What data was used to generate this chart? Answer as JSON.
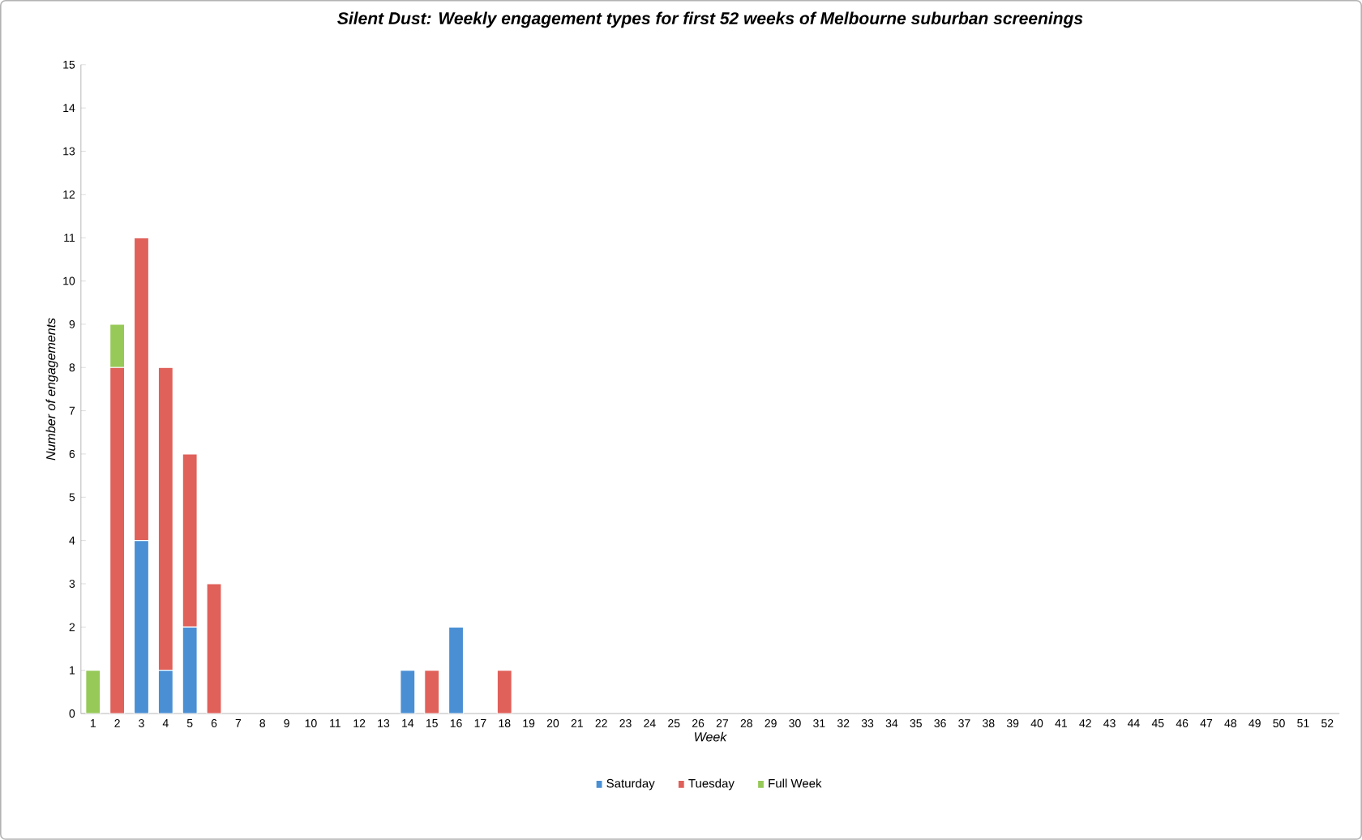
{
  "chart_data": {
    "type": "bar",
    "stacked": true,
    "title": "Silent Dust: Weekly engagement types for first 52 weeks of Melbourne suburban screenings",
    "xlabel": "Week",
    "ylabel": "Number of engagements",
    "categories": [
      "1",
      "2",
      "3",
      "4",
      "5",
      "6",
      "7",
      "8",
      "9",
      "10",
      "11",
      "12",
      "13",
      "14",
      "15",
      "16",
      "17",
      "18",
      "19",
      "20",
      "21",
      "22",
      "23",
      "24",
      "25",
      "26",
      "27",
      "28",
      "29",
      "30",
      "31",
      "32",
      "33",
      "34",
      "35",
      "36",
      "37",
      "38",
      "39",
      "40",
      "41",
      "42",
      "43",
      "44",
      "45",
      "46",
      "47",
      "48",
      "49",
      "50",
      "51",
      "52"
    ],
    "series": [
      {
        "name": "Saturday",
        "color": "#4a8fd4",
        "values": [
          0,
          0,
          4,
          1,
          2,
          0,
          0,
          0,
          0,
          0,
          0,
          0,
          0,
          1,
          0,
          2,
          0,
          0,
          0,
          0,
          0,
          0,
          0,
          0,
          0,
          0,
          0,
          0,
          0,
          0,
          0,
          0,
          0,
          0,
          0,
          0,
          0,
          0,
          0,
          0,
          0,
          0,
          0,
          0,
          0,
          0,
          0,
          0,
          0,
          0,
          0,
          0
        ]
      },
      {
        "name": "Tuesday",
        "color": "#e0605a",
        "values": [
          0,
          8,
          7,
          7,
          4,
          3,
          0,
          0,
          0,
          0,
          0,
          0,
          0,
          0,
          1,
          0,
          0,
          1,
          0,
          0,
          0,
          0,
          0,
          0,
          0,
          0,
          0,
          0,
          0,
          0,
          0,
          0,
          0,
          0,
          0,
          0,
          0,
          0,
          0,
          0,
          0,
          0,
          0,
          0,
          0,
          0,
          0,
          0,
          0,
          0,
          0,
          0
        ]
      },
      {
        "name": "Full Week",
        "color": "#96c957",
        "values": [
          1,
          1,
          0,
          0,
          0,
          0,
          0,
          0,
          0,
          0,
          0,
          0,
          0,
          0,
          0,
          0,
          0,
          0,
          0,
          0,
          0,
          0,
          0,
          0,
          0,
          0,
          0,
          0,
          0,
          0,
          0,
          0,
          0,
          0,
          0,
          0,
          0,
          0,
          0,
          0,
          0,
          0,
          0,
          0,
          0,
          0,
          0,
          0,
          0,
          0,
          0,
          0
        ]
      }
    ],
    "ylim": [
      0,
      15
    ],
    "yticks": [
      0,
      1,
      2,
      3,
      4,
      5,
      6,
      7,
      8,
      9,
      10,
      11,
      12,
      13,
      14,
      15
    ],
    "legend": "bottom"
  }
}
